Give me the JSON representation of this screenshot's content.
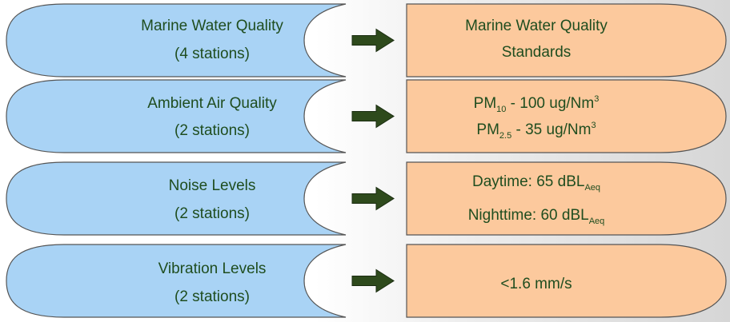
{
  "rows": [
    {
      "parameter": {
        "line1": "Marine Water Quality",
        "line2": "(4 stations)"
      },
      "standard": {
        "line1": {
          "text": "Marine Water Quality"
        },
        "line2": {
          "text": "Standards"
        }
      }
    },
    {
      "parameter": {
        "line1": "Ambient Air Quality",
        "line2": "(2 stations)"
      },
      "standard": {
        "line1": {
          "pre": "PM",
          "sub": "10",
          "post": " - 100 ug/Nm",
          "sup": "3"
        },
        "line2": {
          "pre": "PM",
          "sub": "2.5",
          "post": " - 35 ug/Nm",
          "sup": "3"
        }
      }
    },
    {
      "parameter": {
        "line1": "Noise Levels",
        "line2": "(2 stations)"
      },
      "standard": {
        "line1": {
          "pre": "Daytime:  65 dBL",
          "sub": "Aeq"
        },
        "line2": {
          "pre": "Nighttime:  60 dBL",
          "sub": "Aeq"
        }
      }
    },
    {
      "parameter": {
        "line1": "Vibration Levels",
        "line2": "(2 stations)"
      },
      "standard": {
        "line1": {
          "text": "<1.6 mm/s"
        }
      }
    }
  ],
  "colors": {
    "left_shape_fill": "#a9d3f5",
    "right_shape_fill": "#fcc99d",
    "outline": "#555555",
    "arrow": "#2e4a1c",
    "text": "#1f4d1f",
    "center_band": "#e9e9e9"
  }
}
